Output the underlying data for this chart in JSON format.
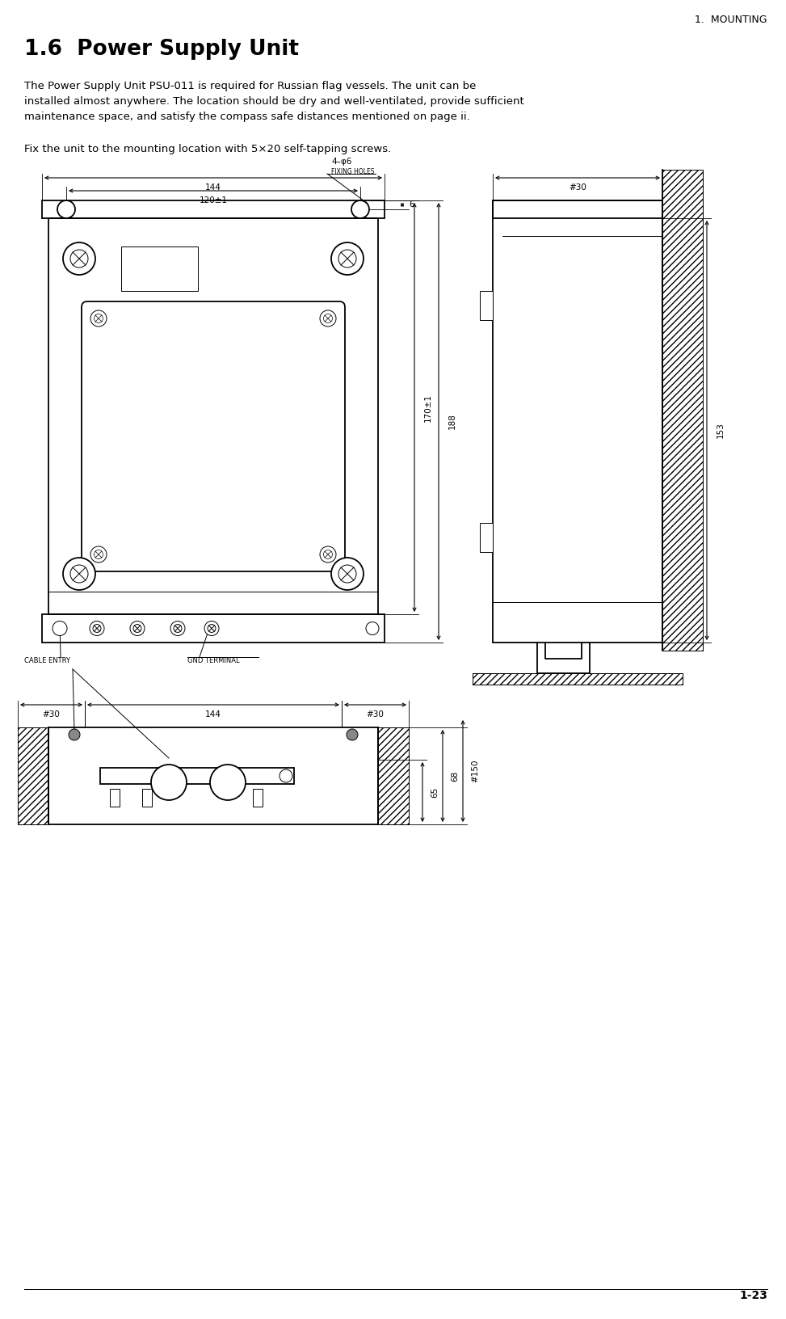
{
  "page_header": "1.  MOUNTING",
  "section_title": "1.6  Power Supply Unit",
  "body_text_1": "The Power Supply Unit PSU-011 is required for Russian flag vessels. The unit can be\ninstalled almost anywhere. The location should be dry and well-ventilated, provide sufficient\nmaintenance space, and satisfy the compass safe distances mentioned on page ii.",
  "body_text_2": "Fix the unit to the mounting location with 5×20 self-tapping screws.",
  "page_number": "1-23",
  "bg_color": "#ffffff",
  "line_color": "#000000"
}
